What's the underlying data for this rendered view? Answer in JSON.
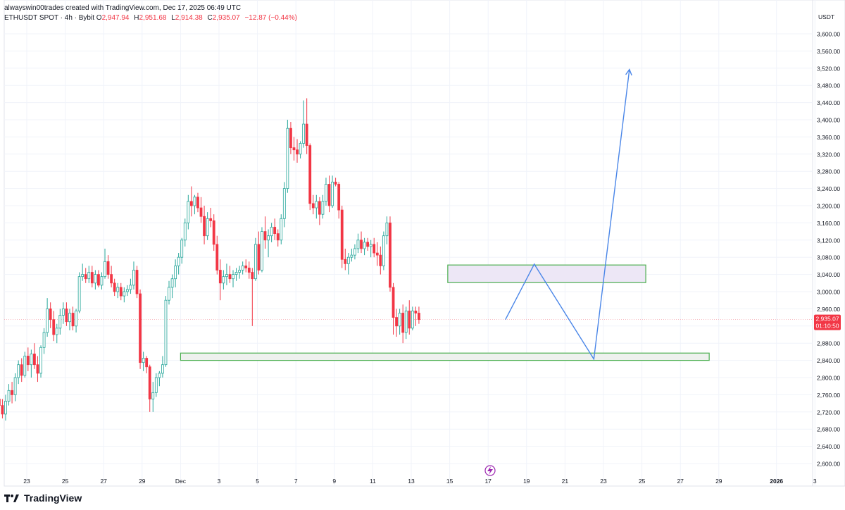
{
  "credit": "alwayswin00trades created with TradingView.com, Dec 17, 2025 06:49 UTC",
  "symbol_line": "ETHUSDT SPOT · 4h · Bybit",
  "ohlc": {
    "o_label": "O",
    "o": "2,947.94",
    "h_label": "H",
    "h": "2,951.68",
    "l_label": "L",
    "l": "2,914.38",
    "c_label": "C",
    "c": "2,935.07",
    "change": "−12.87 (−0.44%)"
  },
  "brand": "TradingView",
  "colors": {
    "up": "#26a69a",
    "down": "#f23645",
    "zone_border": "#4caf50",
    "zone_top_fill": "#ede7f6",
    "zone_bottom_fill": "#eef1ee",
    "path": "#4a86e8",
    "price_tag": "#f23645",
    "grid": "#f0f3fa",
    "axis_text": "#131722"
  },
  "icons": {
    "flash": "lightning-icon",
    "logo": "tradingview-logo-icon"
  },
  "chart_data": {
    "type": "candlestick",
    "currency": "USDT",
    "ylim": [
      2580,
      3620
    ],
    "y_ticks": [
      {
        "value": 2600,
        "label": "2,600.00"
      },
      {
        "value": 2640,
        "label": "2,640.00"
      },
      {
        "value": 2680,
        "label": "2,680.00"
      },
      {
        "value": 2720,
        "label": "2,720.00"
      },
      {
        "value": 2760,
        "label": "2,760.00"
      },
      {
        "value": 2800,
        "label": "2,800.00"
      },
      {
        "value": 2840,
        "label": "2,840.00"
      },
      {
        "value": 2880,
        "label": "2,880.00"
      },
      {
        "value": 2920,
        "label": "2,920.00"
      },
      {
        "value": 2960,
        "label": "2,960.00"
      },
      {
        "value": 3000,
        "label": "3,000.00"
      },
      {
        "value": 3040,
        "label": "3,040.00"
      },
      {
        "value": 3080,
        "label": "3,080.00"
      },
      {
        "value": 3120,
        "label": "3,120.00"
      },
      {
        "value": 3160,
        "label": "3,160.00"
      },
      {
        "value": 3200,
        "label": "3,200.00"
      },
      {
        "value": 3240,
        "label": "3,240.00"
      },
      {
        "value": 3280,
        "label": "3,280.00"
      },
      {
        "value": 3320,
        "label": "3,320.00"
      },
      {
        "value": 3360,
        "label": "3,360.00"
      },
      {
        "value": 3400,
        "label": "3,400.00"
      },
      {
        "value": 3440,
        "label": "3,440.00"
      },
      {
        "value": 3480,
        "label": "3,480.00"
      },
      {
        "value": 3520,
        "label": "3,520.00"
      },
      {
        "value": 3560,
        "label": "3,560.00"
      },
      {
        "value": 3600,
        "label": "3,600.00"
      }
    ],
    "x_ticks": [
      {
        "day": 23,
        "label": "23"
      },
      {
        "day": 25,
        "label": "25"
      },
      {
        "day": 27,
        "label": "27"
      },
      {
        "day": 29,
        "label": "29"
      },
      {
        "day": 31,
        "label": "Dec"
      },
      {
        "day": 33,
        "label": "3"
      },
      {
        "day": 35,
        "label": "5"
      },
      {
        "day": 37,
        "label": "7"
      },
      {
        "day": 39,
        "label": "9"
      },
      {
        "day": 41,
        "label": "11"
      },
      {
        "day": 43,
        "label": "13"
      },
      {
        "day": 45,
        "label": "15"
      },
      {
        "day": 47,
        "label": "17"
      },
      {
        "day": 49,
        "label": "19"
      },
      {
        "day": 51,
        "label": "21"
      },
      {
        "day": 53,
        "label": "23"
      },
      {
        "day": 55,
        "label": "25"
      },
      {
        "day": 57,
        "label": "27"
      },
      {
        "day": 59,
        "label": "29"
      },
      {
        "day": 62,
        "label": "2026"
      },
      {
        "day": 64,
        "label": "3"
      }
    ],
    "candle_start_day": 21.4,
    "candles_per_day": 6,
    "candles": [
      [
        2740,
        2760,
        2730,
        2750
      ],
      [
        2750,
        2770,
        2720,
        2735
      ],
      [
        2735,
        2750,
        2705,
        2715
      ],
      [
        2715,
        2760,
        2700,
        2745
      ],
      [
        2745,
        2785,
        2735,
        2770
      ],
      [
        2770,
        2790,
        2740,
        2760
      ],
      [
        2760,
        2810,
        2745,
        2800
      ],
      [
        2800,
        2840,
        2785,
        2830
      ],
      [
        2830,
        2845,
        2790,
        2805
      ],
      [
        2805,
        2860,
        2800,
        2850
      ],
      [
        2850,
        2870,
        2815,
        2830
      ],
      [
        2830,
        2865,
        2800,
        2855
      ],
      [
        2855,
        2880,
        2820,
        2830
      ],
      [
        2830,
        2850,
        2790,
        2810
      ],
      [
        2810,
        2875,
        2800,
        2870
      ],
      [
        2870,
        2915,
        2855,
        2905
      ],
      [
        2905,
        2985,
        2895,
        2960
      ],
      [
        2960,
        2975,
        2915,
        2935
      ],
      [
        2935,
        2955,
        2885,
        2900
      ],
      [
        2900,
        2925,
        2880,
        2915
      ],
      [
        2915,
        2960,
        2900,
        2945
      ],
      [
        2945,
        2975,
        2925,
        2960
      ],
      [
        2960,
        2975,
        2920,
        2930
      ],
      [
        2930,
        2960,
        2910,
        2950
      ],
      [
        2950,
        2965,
        2910,
        2920
      ],
      [
        2920,
        2960,
        2905,
        2955
      ],
      [
        2955,
        3045,
        2950,
        3035
      ],
      [
        3035,
        3065,
        3025,
        3040
      ],
      [
        3040,
        3055,
        3020,
        3030
      ],
      [
        3030,
        3060,
        3020,
        3045
      ],
      [
        3045,
        3060,
        3010,
        3020
      ],
      [
        3020,
        3050,
        3005,
        3040
      ],
      [
        3040,
        3050,
        3010,
        3015
      ],
      [
        3015,
        3045,
        3005,
        3035
      ],
      [
        3035,
        3100,
        3030,
        3070
      ],
      [
        3070,
        3085,
        3030,
        3040
      ],
      [
        3040,
        3060,
        3010,
        3020
      ],
      [
        3020,
        3030,
        2990,
        3000
      ],
      [
        3000,
        3020,
        2985,
        3010
      ],
      [
        3010,
        3020,
        2980,
        2990
      ],
      [
        2990,
        3010,
        2975,
        3000
      ],
      [
        3000,
        3015,
        2990,
        3005
      ],
      [
        3005,
        3030,
        2995,
        3015
      ],
      [
        3015,
        3070,
        3005,
        3050
      ],
      [
        3050,
        3060,
        2985,
        2995
      ],
      [
        2995,
        3005,
        2820,
        2835
      ],
      [
        2835,
        2860,
        2815,
        2845
      ],
      [
        2845,
        2850,
        2810,
        2825
      ],
      [
        2825,
        2830,
        2720,
        2750
      ],
      [
        2750,
        2790,
        2720,
        2765
      ],
      [
        2765,
        2810,
        2755,
        2800
      ],
      [
        2800,
        2815,
        2780,
        2810
      ],
      [
        2810,
        2850,
        2800,
        2830
      ],
      [
        2830,
        2990,
        2825,
        2980
      ],
      [
        2980,
        3025,
        2970,
        3010
      ],
      [
        3010,
        3040,
        2985,
        3030
      ],
      [
        3030,
        3075,
        3010,
        3060
      ],
      [
        3060,
        3090,
        3040,
        3080
      ],
      [
        3080,
        3125,
        3065,
        3120
      ],
      [
        3120,
        3170,
        3105,
        3160
      ],
      [
        3160,
        3225,
        3145,
        3210
      ],
      [
        3210,
        3245,
        3175,
        3200
      ],
      [
        3200,
        3225,
        3180,
        3220
      ],
      [
        3220,
        3230,
        3185,
        3195
      ],
      [
        3195,
        3220,
        3160,
        3175
      ],
      [
        3175,
        3200,
        3110,
        3130
      ],
      [
        3130,
        3185,
        3120,
        3170
      ],
      [
        3170,
        3195,
        3150,
        3165
      ],
      [
        3165,
        3180,
        3095,
        3110
      ],
      [
        3110,
        3130,
        3040,
        3050
      ],
      [
        3050,
        3075,
        2980,
        3020
      ],
      [
        3020,
        3050,
        3005,
        3035
      ],
      [
        3035,
        3065,
        3015,
        3040
      ],
      [
        3040,
        3060,
        3020,
        3030
      ],
      [
        3030,
        3050,
        3010,
        3040
      ],
      [
        3040,
        3055,
        3025,
        3045
      ],
      [
        3045,
        3060,
        3030,
        3050
      ],
      [
        3050,
        3070,
        3040,
        3060
      ],
      [
        3060,
        3075,
        3045,
        3055
      ],
      [
        3055,
        3070,
        3030,
        3045
      ],
      [
        3045,
        3055,
        2920,
        3030
      ],
      [
        3030,
        3125,
        3025,
        3110
      ],
      [
        3110,
        3140,
        3040,
        3050
      ],
      [
        3050,
        3150,
        3045,
        3140
      ],
      [
        3140,
        3175,
        3100,
        3120
      ],
      [
        3120,
        3145,
        3080,
        3130
      ],
      [
        3130,
        3160,
        3115,
        3150
      ],
      [
        3150,
        3170,
        3120,
        3135
      ],
      [
        3135,
        3145,
        3105,
        3120
      ],
      [
        3120,
        3180,
        3110,
        3170
      ],
      [
        3170,
        3255,
        3150,
        3240
      ],
      [
        3240,
        3400,
        3230,
        3380
      ],
      [
        3380,
        3395,
        3320,
        3335
      ],
      [
        3335,
        3360,
        3305,
        3330
      ],
      [
        3330,
        3355,
        3300,
        3320
      ],
      [
        3320,
        3350,
        3310,
        3345
      ],
      [
        3345,
        3445,
        3335,
        3390
      ],
      [
        3390,
        3450,
        3320,
        3340
      ],
      [
        3340,
        3345,
        3190,
        3205
      ],
      [
        3205,
        3225,
        3180,
        3195
      ],
      [
        3195,
        3225,
        3170,
        3210
      ],
      [
        3210,
        3220,
        3155,
        3180
      ],
      [
        3180,
        3225,
        3170,
        3210
      ],
      [
        3210,
        3265,
        3200,
        3250
      ],
      [
        3250,
        3270,
        3185,
        3200
      ],
      [
        3200,
        3270,
        3195,
        3255
      ],
      [
        3255,
        3265,
        3245,
        3250
      ],
      [
        3250,
        3255,
        3170,
        3190
      ],
      [
        3190,
        3200,
        3055,
        3075
      ],
      [
        3075,
        3100,
        3050,
        3065
      ],
      [
        3065,
        3090,
        3040,
        3080
      ],
      [
        3080,
        3100,
        3070,
        3085
      ],
      [
        3085,
        3110,
        3075,
        3100
      ],
      [
        3100,
        3135,
        3090,
        3120
      ],
      [
        3120,
        3140,
        3090,
        3100
      ],
      [
        3100,
        3125,
        3085,
        3115
      ],
      [
        3115,
        3125,
        3095,
        3105
      ],
      [
        3105,
        3120,
        3080,
        3110
      ],
      [
        3110,
        3125,
        3080,
        3090
      ],
      [
        3090,
        3115,
        3060,
        3085
      ],
      [
        3085,
        3105,
        3040,
        3060
      ],
      [
        3060,
        3140,
        3050,
        3130
      ],
      [
        3130,
        3175,
        3110,
        3160
      ],
      [
        3160,
        3175,
        3000,
        3010
      ],
      [
        3010,
        3020,
        2900,
        2940
      ],
      [
        2940,
        2960,
        2895,
        2920
      ],
      [
        2920,
        2960,
        2900,
        2950
      ],
      [
        2950,
        2970,
        2880,
        2905
      ],
      [
        2905,
        2965,
        2890,
        2955
      ],
      [
        2955,
        2980,
        2900,
        2915
      ],
      [
        2915,
        2965,
        2910,
        2955
      ],
      [
        2955,
        2965,
        2920,
        2950
      ],
      [
        2950,
        2965,
        2925,
        2935
      ]
    ],
    "last_price": {
      "value": 2935.07,
      "label": "2,935.07",
      "countdown": "01:10:50"
    },
    "zones": [
      {
        "name": "resistance-zone",
        "top": 3062,
        "bottom": 3021,
        "from_day": 44.9,
        "to_day": 55.2
      },
      {
        "name": "support-zone",
        "top": 2857,
        "bottom": 2840,
        "from_day": 31.0,
        "to_day": 58.5
      }
    ],
    "projected_path": [
      {
        "day": 47.9,
        "price": 2935
      },
      {
        "day": 49.4,
        "price": 3064
      },
      {
        "day": 52.5,
        "price": 2843
      },
      {
        "day": 54.35,
        "price": 3517
      }
    ]
  }
}
